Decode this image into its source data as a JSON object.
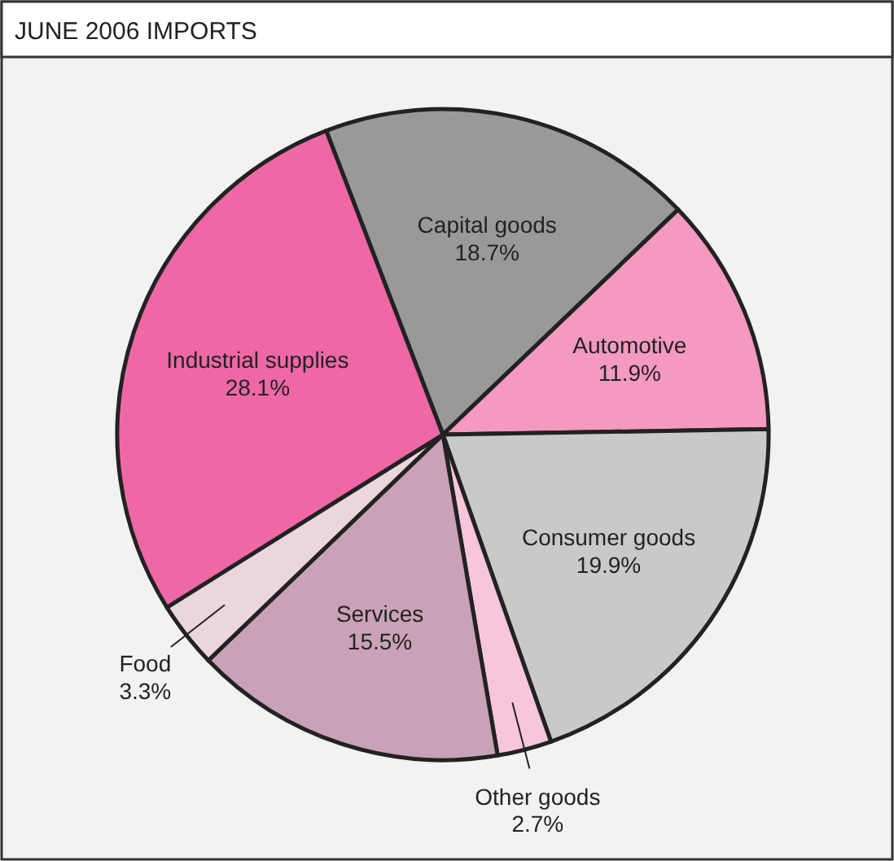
{
  "chart_data": {
    "type": "pie",
    "title": "JUNE 2006 IMPORTS",
    "categories": [
      "Capital goods",
      "Automotive",
      "Consumer goods",
      "Other goods",
      "Services",
      "Food",
      "Industrial supplies"
    ],
    "values": [
      18.7,
      11.9,
      19.9,
      2.7,
      15.5,
      3.3,
      28.1
    ],
    "colors": [
      "#98999b",
      "#f499c0",
      "#c9c9ca",
      "#f7c5dc",
      "#c9a2b7",
      "#ebd5df",
      "#ef68a6"
    ],
    "value_labels": [
      "18.7%",
      "11.9%",
      "19.9%",
      "2.7%",
      "15.5%",
      "3.3%",
      "28.1%"
    ]
  }
}
